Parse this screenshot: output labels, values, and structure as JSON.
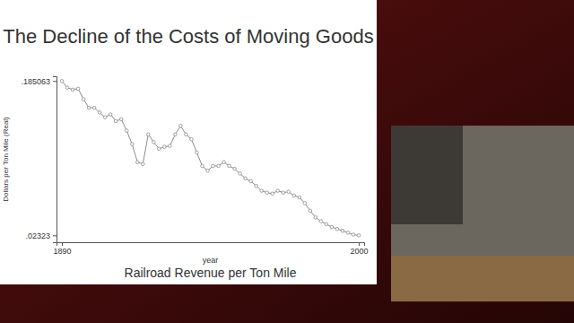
{
  "chart_data": {
    "type": "line",
    "title": "The Decline of the Costs of Moving Goods",
    "x_label": "year",
    "y_label": "Dollars per Ton Mile (Real)",
    "caption": "Railroad Revenue per Ton Mile",
    "x": [
      1890,
      1892,
      1894,
      1896,
      1898,
      1900,
      1902,
      1904,
      1906,
      1908,
      1910,
      1912,
      1914,
      1916,
      1918,
      1920,
      1922,
      1924,
      1926,
      1928,
      1930,
      1932,
      1934,
      1936,
      1938,
      1940,
      1942,
      1944,
      1946,
      1948,
      1950,
      1952,
      1954,
      1956,
      1958,
      1960,
      1962,
      1964,
      1966,
      1968,
      1970,
      1972,
      1974,
      1976,
      1978,
      1980,
      1982,
      1984,
      1986,
      1988,
      1990,
      1992,
      1994,
      1996,
      1998,
      2000
    ],
    "values": [
      0.185,
      0.178,
      0.176,
      0.177,
      0.166,
      0.157,
      0.157,
      0.152,
      0.147,
      0.15,
      0.143,
      0.145,
      0.133,
      0.119,
      0.1,
      0.098,
      0.129,
      0.121,
      0.114,
      0.116,
      0.117,
      0.129,
      0.138,
      0.129,
      0.124,
      0.11,
      0.096,
      0.091,
      0.096,
      0.096,
      0.1,
      0.096,
      0.093,
      0.088,
      0.083,
      0.08,
      0.075,
      0.07,
      0.068,
      0.067,
      0.07,
      0.068,
      0.069,
      0.065,
      0.063,
      0.057,
      0.049,
      0.042,
      0.038,
      0.035,
      0.032,
      0.03,
      0.028,
      0.026,
      0.024,
      0.0232
    ],
    "color": "#8c8c8c",
    "marker": "circle",
    "line_style": "solid",
    "xlim": [
      1888,
      2002
    ],
    "xticks": [
      1890,
      2000
    ],
    "ylim": [
      0.016,
      0.19
    ],
    "yticks": [
      {
        "value": 0.02323,
        "label": ".02323"
      },
      {
        "value": 0.185063,
        "label": ".185063"
      }
    ],
    "grid": false
  }
}
